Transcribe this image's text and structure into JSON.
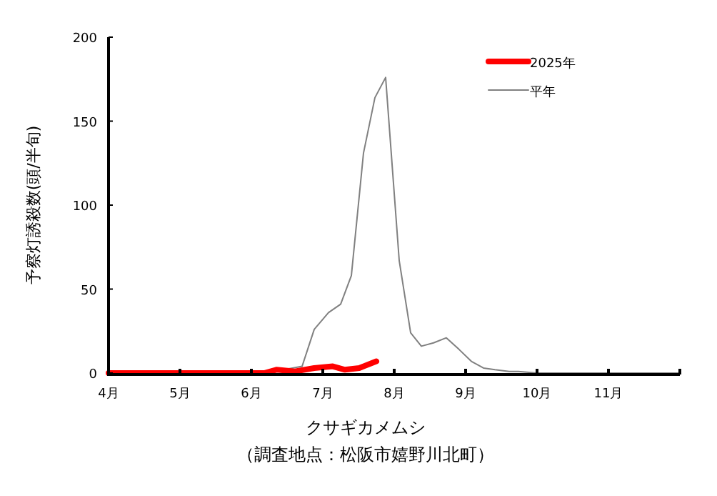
{
  "chart_data": {
    "type": "line",
    "xlabel": "クサギカメムシ",
    "ylabel": "予察灯誘殺数(頭/半旬)",
    "annotations": [
      "（調査地点：松阪市嬉野川北町）"
    ],
    "series": [
      {
        "name": "2025年",
        "color": "#ff0000",
        "x": [
          4.0,
          5.0,
          6.0,
          6.18,
          6.35,
          6.61,
          6.88,
          7.14,
          7.31,
          7.51,
          7.75
        ],
        "values": [
          0,
          0,
          0,
          0,
          2,
          1,
          3,
          4,
          2,
          3,
          7
        ]
      },
      {
        "name": "平年",
        "color": "#808080",
        "x": [
          4.0,
          5.0,
          6.0,
          6.2,
          6.38,
          6.54,
          6.71,
          6.88,
          7.08,
          7.25,
          7.4,
          7.57,
          7.73,
          7.88,
          8.07,
          8.23,
          8.38,
          8.55,
          8.73,
          8.91,
          9.08,
          9.25,
          9.41,
          9.61,
          9.74,
          10.0,
          12.0
        ],
        "values": [
          0,
          0,
          0,
          0,
          null,
          null,
          4,
          26,
          36,
          41,
          58,
          131,
          164,
          176,
          67,
          24,
          16,
          18,
          21,
          14,
          7,
          3,
          2,
          1,
          1,
          0,
          0
        ]
      }
    ],
    "xlim": [
      4,
      12
    ],
    "xticks": [
      {
        "value": 4,
        "label": "4月"
      },
      {
        "value": 5,
        "label": "5月"
      },
      {
        "value": 6,
        "label": "6月"
      },
      {
        "value": 7,
        "label": "7月"
      },
      {
        "value": 8,
        "label": "8月"
      },
      {
        "value": 9,
        "label": "9月"
      },
      {
        "value": 10,
        "label": "10月"
      },
      {
        "value": 11,
        "label": "11月"
      },
      {
        "value": 12,
        "label": null
      }
    ],
    "ylim": [
      0,
      200
    ],
    "yticks": [
      0,
      50,
      100,
      150,
      200
    ],
    "grid": false,
    "legend": "top right",
    "marker": "none",
    "line_style": "solid"
  }
}
